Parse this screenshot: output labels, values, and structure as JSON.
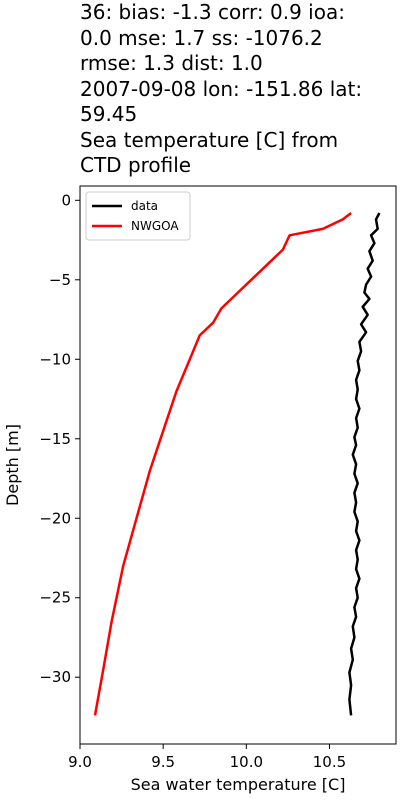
{
  "title_lines": [
    "36: bias: -1.3  corr: 0.9  ioa:",
    "0.0  mse: 1.7  ss: -1076.2",
    "rmse: 1.3  dist: 1.0",
    "2007-09-08 lon: -151.86 lat:",
    "59.45",
    "Sea temperature [C] from",
    "CTD profile"
  ],
  "chart_data": {
    "type": "line",
    "xlabel": "Sea water temperature [C]",
    "ylabel": "Depth [m]",
    "xlim": [
      9.0,
      10.9
    ],
    "ylim": [
      -34.2,
      0.9
    ],
    "xticks": [
      9.0,
      9.5,
      10.0,
      10.5
    ],
    "xtick_labels": [
      "9.0",
      "9.5",
      "10.0",
      "10.5"
    ],
    "yticks": [
      0,
      -5,
      -10,
      -15,
      -20,
      -25,
      -30
    ],
    "ytick_labels": [
      "0",
      "−5",
      "−10",
      "−15",
      "−20",
      "−25",
      "−30"
    ],
    "grid": false,
    "legend_position": "top-left",
    "series": [
      {
        "name": "data",
        "color": "#000000",
        "x": [
          10.8,
          10.78,
          10.79,
          10.75,
          10.77,
          10.74,
          10.76,
          10.73,
          10.75,
          10.72,
          10.71,
          10.74,
          10.7,
          10.73,
          10.69,
          10.72,
          10.68,
          10.69,
          10.67,
          10.68,
          10.66,
          10.67,
          10.66,
          10.68,
          10.66,
          10.67,
          10.65,
          10.66,
          10.64,
          10.66,
          10.65,
          10.67,
          10.65,
          10.66,
          10.65,
          10.67,
          10.66,
          10.68,
          10.66,
          10.67,
          10.66,
          10.68,
          10.66,
          10.67,
          10.65,
          10.66,
          10.64,
          10.65,
          10.63,
          10.64,
          10.62,
          10.63,
          10.62,
          10.63
        ],
        "y": [
          -0.8,
          -1.2,
          -1.8,
          -2.2,
          -2.7,
          -3.2,
          -3.8,
          -4.3,
          -4.8,
          -5.3,
          -5.8,
          -6.2,
          -6.7,
          -7.2,
          -7.8,
          -8.3,
          -8.9,
          -9.5,
          -10.1,
          -10.7,
          -11.3,
          -11.9,
          -12.5,
          -13.1,
          -13.7,
          -14.3,
          -14.9,
          -15.4,
          -16.0,
          -16.6,
          -17.2,
          -17.8,
          -18.4,
          -19.0,
          -19.6,
          -20.2,
          -20.8,
          -21.4,
          -22.0,
          -22.6,
          -23.2,
          -23.8,
          -24.4,
          -25.0,
          -25.6,
          -26.2,
          -26.8,
          -27.5,
          -28.2,
          -28.9,
          -29.7,
          -30.5,
          -31.4,
          -32.4
        ]
      },
      {
        "name": "NWGOA",
        "color": "#ff0000",
        "x": [
          10.63,
          10.58,
          10.46,
          10.26,
          10.22,
          10.14,
          10.04,
          9.94,
          9.85,
          9.8,
          9.72,
          9.66,
          9.58,
          9.5,
          9.42,
          9.34,
          9.26,
          9.19,
          9.14,
          9.09
        ],
        "y": [
          -0.8,
          -1.2,
          -1.8,
          -2.2,
          -3.1,
          -3.9,
          -4.9,
          -5.9,
          -6.8,
          -7.7,
          -8.5,
          -10.0,
          -12.0,
          -14.5,
          -17.0,
          -20.0,
          -23.0,
          -26.5,
          -29.5,
          -32.4
        ]
      }
    ]
  }
}
